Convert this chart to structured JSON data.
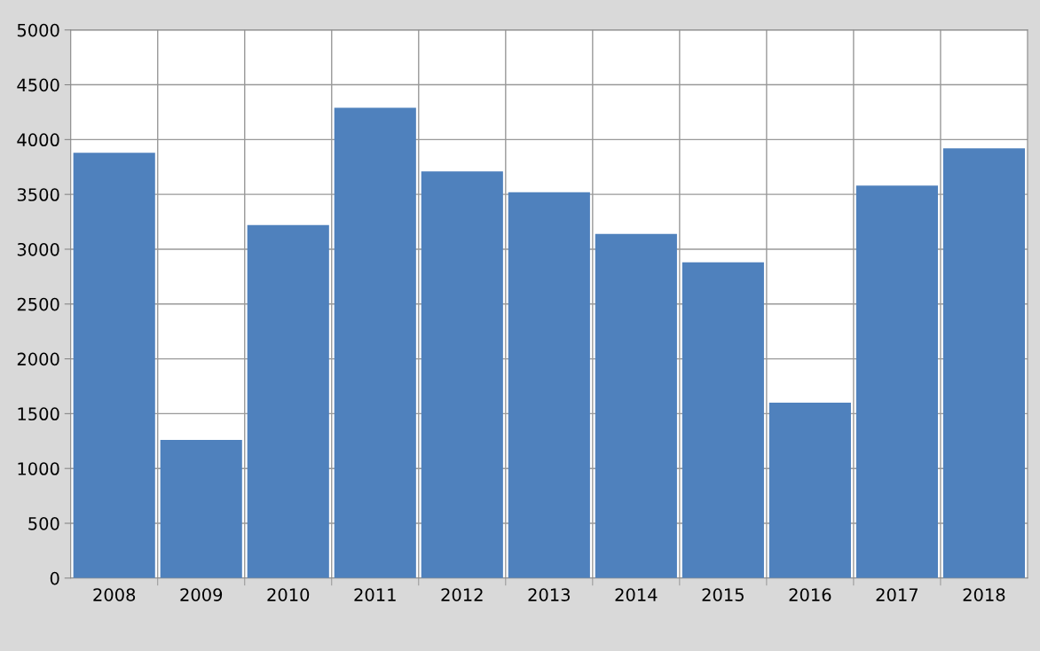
{
  "chart_data": {
    "type": "bar",
    "categories": [
      "2008",
      "2009",
      "2010",
      "2011",
      "2012",
      "2013",
      "2014",
      "2015",
      "2016",
      "2017",
      "2018"
    ],
    "values": [
      3880,
      1260,
      3220,
      4290,
      3710,
      3520,
      3140,
      2880,
      1600,
      3580,
      3920
    ],
    "color": "#4f81bd",
    "ylim": [
      0,
      5000
    ],
    "yticks": [
      0,
      500,
      1000,
      1500,
      2000,
      2500,
      3000,
      3500,
      4000,
      4500,
      5000
    ],
    "grid": true,
    "legend": false
  }
}
